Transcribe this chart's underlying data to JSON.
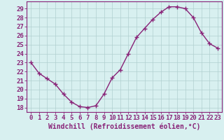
{
  "x": [
    0,
    1,
    2,
    3,
    4,
    5,
    6,
    7,
    8,
    9,
    10,
    11,
    12,
    13,
    14,
    15,
    16,
    17,
    18,
    19,
    20,
    21,
    22,
    23
  ],
  "y": [
    23.0,
    21.8,
    21.2,
    20.6,
    19.5,
    18.6,
    18.1,
    18.0,
    18.2,
    19.5,
    21.3,
    22.2,
    24.0,
    25.8,
    26.8,
    27.8,
    28.6,
    29.2,
    29.2,
    29.0,
    28.0,
    26.3,
    25.1,
    24.6
  ],
  "line_color": "#882277",
  "marker": "+",
  "marker_size": 4,
  "bg_color": "#d8f0f0",
  "grid_color": "#b0d0d0",
  "xlabel": "Windchill (Refroidissement éolien,°C)",
  "xlabel_color": "#882277",
  "xlabel_fontsize": 7,
  "xtick_labels": [
    "0",
    "1",
    "2",
    "3",
    "4",
    "5",
    "6",
    "7",
    "8",
    "9",
    "10",
    "11",
    "12",
    "13",
    "14",
    "15",
    "16",
    "17",
    "18",
    "19",
    "20",
    "21",
    "22",
    "23"
  ],
  "ytick_vals": [
    18,
    19,
    20,
    21,
    22,
    23,
    24,
    25,
    26,
    27,
    28,
    29
  ],
  "ylim": [
    17.5,
    29.8
  ],
  "xlim": [
    -0.5,
    23.5
  ],
  "tick_color": "#882277",
  "tick_fontsize": 6.5,
  "border_color": "#882277",
  "linewidth": 1.0,
  "markeredgewidth": 1.0
}
